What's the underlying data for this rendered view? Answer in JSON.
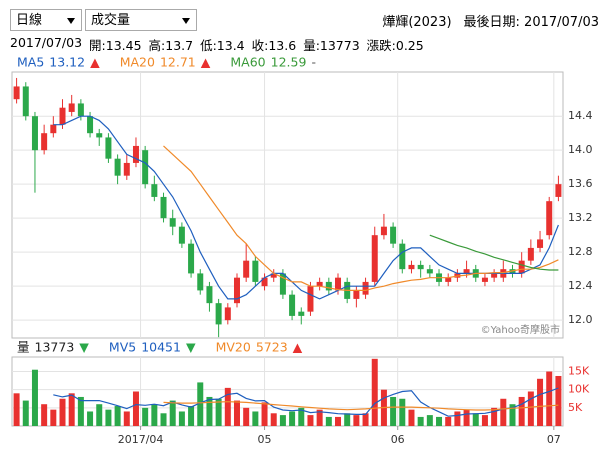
{
  "controls": {
    "period": "日線",
    "indicator": "成交量"
  },
  "header": {
    "stock": "燁輝(2023)",
    "last_date": "最後日期: 2017/07/03"
  },
  "info": [
    "2017/07/03",
    "開:13.45",
    "高:13.7",
    "低:13.4",
    "收:13.6",
    "量:13773",
    "漲跌:0.25"
  ],
  "chart_data": [
    {
      "type": "candlestick",
      "up_color": "#e8312f",
      "down_color": "#2ba84a",
      "open": [
        14.6,
        14.75,
        14.4,
        14.0,
        14.2,
        14.3,
        14.45,
        14.55,
        14.4,
        14.2,
        14.15,
        13.9,
        13.7,
        13.85,
        14.0,
        13.6,
        13.45,
        13.2,
        13.1,
        12.9,
        12.55,
        12.4,
        12.2,
        12.0,
        12.2,
        12.5,
        12.7,
        12.4,
        12.5,
        12.55,
        12.3,
        12.1,
        12.1,
        12.4,
        12.45,
        12.35,
        12.45,
        12.25,
        12.3,
        12.45,
        13.0,
        13.1,
        12.9,
        12.6,
        12.65,
        12.6,
        12.55,
        12.45,
        12.5,
        12.55,
        12.6,
        12.45,
        12.5,
        12.5,
        12.6,
        12.55,
        12.7,
        12.85,
        13.0,
        13.45
      ],
      "high": [
        14.85,
        14.8,
        14.45,
        14.3,
        14.4,
        14.6,
        14.65,
        14.6,
        14.45,
        14.25,
        14.2,
        13.95,
        13.95,
        14.15,
        14.05,
        13.7,
        13.5,
        13.3,
        13.15,
        12.95,
        12.6,
        12.45,
        12.25,
        12.2,
        12.55,
        12.9,
        12.75,
        12.55,
        12.6,
        12.6,
        12.35,
        12.15,
        12.45,
        12.5,
        12.5,
        12.55,
        12.5,
        12.4,
        12.5,
        13.1,
        13.25,
        13.15,
        12.95,
        12.7,
        12.7,
        12.65,
        12.6,
        12.55,
        12.6,
        12.7,
        12.65,
        12.55,
        12.6,
        12.7,
        12.65,
        12.8,
        12.95,
        13.05,
        13.45,
        13.7
      ],
      "low": [
        14.55,
        14.35,
        13.5,
        13.95,
        14.15,
        14.25,
        14.4,
        14.35,
        14.15,
        14.05,
        13.85,
        13.6,
        13.65,
        13.8,
        13.55,
        13.4,
        13.15,
        13.0,
        12.85,
        12.5,
        12.3,
        12.1,
        11.8,
        11.95,
        12.15,
        12.45,
        12.4,
        12.35,
        12.45,
        12.25,
        12.0,
        11.95,
        12.05,
        12.35,
        12.3,
        12.3,
        12.2,
        12.15,
        12.25,
        12.4,
        12.95,
        12.85,
        12.55,
        12.55,
        12.5,
        12.5,
        12.4,
        12.4,
        12.45,
        12.5,
        12.45,
        12.4,
        12.45,
        12.45,
        12.5,
        12.5,
        12.65,
        12.8,
        12.95,
        13.4
      ],
      "close": [
        14.75,
        14.4,
        14.0,
        14.2,
        14.3,
        14.5,
        14.55,
        14.4,
        14.2,
        14.15,
        13.9,
        13.7,
        13.85,
        14.05,
        13.6,
        13.45,
        13.2,
        13.1,
        12.9,
        12.55,
        12.35,
        12.2,
        11.95,
        12.15,
        12.5,
        12.7,
        12.45,
        12.5,
        12.55,
        12.3,
        12.05,
        12.05,
        12.4,
        12.45,
        12.35,
        12.5,
        12.25,
        12.35,
        12.45,
        13.0,
        13.1,
        12.9,
        12.6,
        12.65,
        12.6,
        12.55,
        12.45,
        12.5,
        12.55,
        12.6,
        12.5,
        12.5,
        12.55,
        12.6,
        12.55,
        12.7,
        12.85,
        12.95,
        13.4,
        13.6
      ],
      "series": [
        {
          "name": "MA5",
          "color": "#1f5fbf",
          "legend_value": 13.12,
          "trend": "▲",
          "values": [
            null,
            null,
            null,
            null,
            14.3,
            14.3,
            14.35,
            14.4,
            14.4,
            14.35,
            14.25,
            14.1,
            13.95,
            13.9,
            13.85,
            13.75,
            13.6,
            13.45,
            13.25,
            13.05,
            12.8,
            12.6,
            12.4,
            12.25,
            12.25,
            12.3,
            12.4,
            12.5,
            12.55,
            12.55,
            12.45,
            12.35,
            12.3,
            12.25,
            12.3,
            12.35,
            12.4,
            12.4,
            12.4,
            12.4,
            12.55,
            12.7,
            12.8,
            12.85,
            12.85,
            12.75,
            12.65,
            12.6,
            12.55,
            12.55,
            12.55,
            12.55,
            12.55,
            12.55,
            12.55,
            12.55,
            12.6,
            12.65,
            12.85,
            13.12
          ]
        },
        {
          "name": "MA20",
          "color": "#f08a2a",
          "legend_value": 12.71,
          "trend": "▲",
          "values": [
            null,
            null,
            null,
            null,
            null,
            null,
            null,
            null,
            null,
            null,
            null,
            null,
            null,
            null,
            null,
            null,
            14.05,
            13.95,
            13.85,
            13.75,
            13.6,
            13.45,
            13.3,
            13.15,
            13.0,
            12.9,
            12.75,
            12.65,
            12.55,
            12.5,
            12.45,
            12.45,
            12.4,
            12.4,
            12.38,
            12.36,
            12.35,
            12.35,
            12.35,
            12.38,
            12.4,
            12.43,
            12.45,
            12.47,
            12.48,
            12.5,
            12.5,
            12.5,
            12.52,
            12.53,
            12.55,
            12.55,
            12.56,
            12.56,
            12.58,
            12.6,
            12.6,
            12.62,
            12.66,
            12.71
          ]
        },
        {
          "name": "MA60",
          "color": "#3a9a3a",
          "legend_value": 12.59,
          "trend": "-",
          "values": [
            null,
            null,
            null,
            null,
            null,
            null,
            null,
            null,
            null,
            null,
            null,
            null,
            null,
            null,
            null,
            null,
            null,
            null,
            null,
            null,
            null,
            null,
            null,
            null,
            null,
            null,
            null,
            null,
            null,
            null,
            null,
            null,
            null,
            null,
            null,
            null,
            null,
            null,
            null,
            null,
            null,
            null,
            null,
            null,
            null,
            13.0,
            12.96,
            12.92,
            12.88,
            12.85,
            12.81,
            12.78,
            12.74,
            12.71,
            12.68,
            12.65,
            12.62,
            12.6,
            12.59,
            12.59
          ]
        }
      ],
      "ylim": [
        11.79,
        14.92
      ],
      "yticks": [
        {
          "value": 12.0,
          "label": "12.0"
        },
        {
          "value": 12.4,
          "label": "12.4"
        },
        {
          "value": 12.8,
          "label": "12.8"
        },
        {
          "value": 13.2,
          "label": "13.2"
        },
        {
          "value": 13.6,
          "label": "13.6"
        },
        {
          "value": 14.0,
          "label": "14.0"
        },
        {
          "value": 14.4,
          "label": "14.4"
        }
      ],
      "grid": true,
      "watermark": "©Yahoo奇摩股市"
    },
    {
      "type": "bar",
      "name": "量",
      "legend_value": 13773,
      "trend": "▼",
      "values": [
        9000,
        7000,
        15500,
        6000,
        4500,
        7500,
        9000,
        8000,
        4000,
        6000,
        4500,
        5500,
        4000,
        9500,
        5000,
        6000,
        3500,
        7000,
        4000,
        5500,
        12000,
        8000,
        7500,
        10500,
        7000,
        5000,
        4000,
        6500,
        3500,
        3000,
        4000,
        5000,
        3000,
        4500,
        2500,
        2500,
        3500,
        3000,
        3500,
        18500,
        10000,
        8000,
        7500,
        4500,
        2500,
        3000,
        2500,
        2500,
        4000,
        4500,
        3500,
        3000,
        5000,
        7500,
        6000,
        8000,
        9500,
        13000,
        15000,
        13773
      ],
      "series": [
        {
          "name": "MV5",
          "color": "#1f5fbf",
          "legend_value": 10451,
          "trend": "▼",
          "values": [
            null,
            null,
            null,
            null,
            8600,
            8000,
            8500,
            7000,
            7000,
            7000,
            6300,
            5600,
            4800,
            5900,
            5700,
            6000,
            5600,
            6600,
            5800,
            5200,
            6400,
            7300,
            7400,
            8700,
            9000,
            7600,
            6900,
            7000,
            5200,
            4400,
            4200,
            4400,
            3700,
            3900,
            3700,
            3400,
            3300,
            3200,
            3200,
            6200,
            7700,
            8700,
            9500,
            9700,
            6600,
            5100,
            3900,
            2700,
            2900,
            3300,
            3400,
            3500,
            4000,
            4700,
            5000,
            6000,
            7500,
            8700,
            9500,
            10451
          ]
        },
        {
          "name": "MV20",
          "color": "#f08a2a",
          "legend_value": 5723,
          "trend": "▲",
          "values": [
            null,
            null,
            null,
            null,
            null,
            null,
            null,
            null,
            null,
            null,
            null,
            null,
            null,
            null,
            null,
            null,
            6500,
            6400,
            6300,
            6300,
            6400,
            6500,
            6600,
            6700,
            6600,
            6500,
            6300,
            6100,
            5900,
            5700,
            5500,
            5300,
            5100,
            4900,
            4700,
            4600,
            4500,
            4600,
            4700,
            4900,
            5100,
            5200,
            5200,
            5200,
            5100,
            5000,
            4900,
            4700,
            4600,
            4500,
            4400,
            4400,
            4500,
            4700,
            4900,
            5000,
            5200,
            5400,
            5550,
            5723
          ]
        }
      ],
      "ylim": [
        0,
        19000
      ],
      "yticks": [
        {
          "value": 5000,
          "label": "5K"
        },
        {
          "value": 10000,
          "label": "10K"
        },
        {
          "value": 15000,
          "label": "15K"
        }
      ],
      "xticks": [
        {
          "value": 13.5,
          "label": "2017/04"
        },
        {
          "value": 27,
          "label": "05"
        },
        {
          "value": 41.5,
          "label": "06"
        },
        {
          "value": 58.5,
          "label": "07"
        }
      ],
      "grid": true
    }
  ]
}
